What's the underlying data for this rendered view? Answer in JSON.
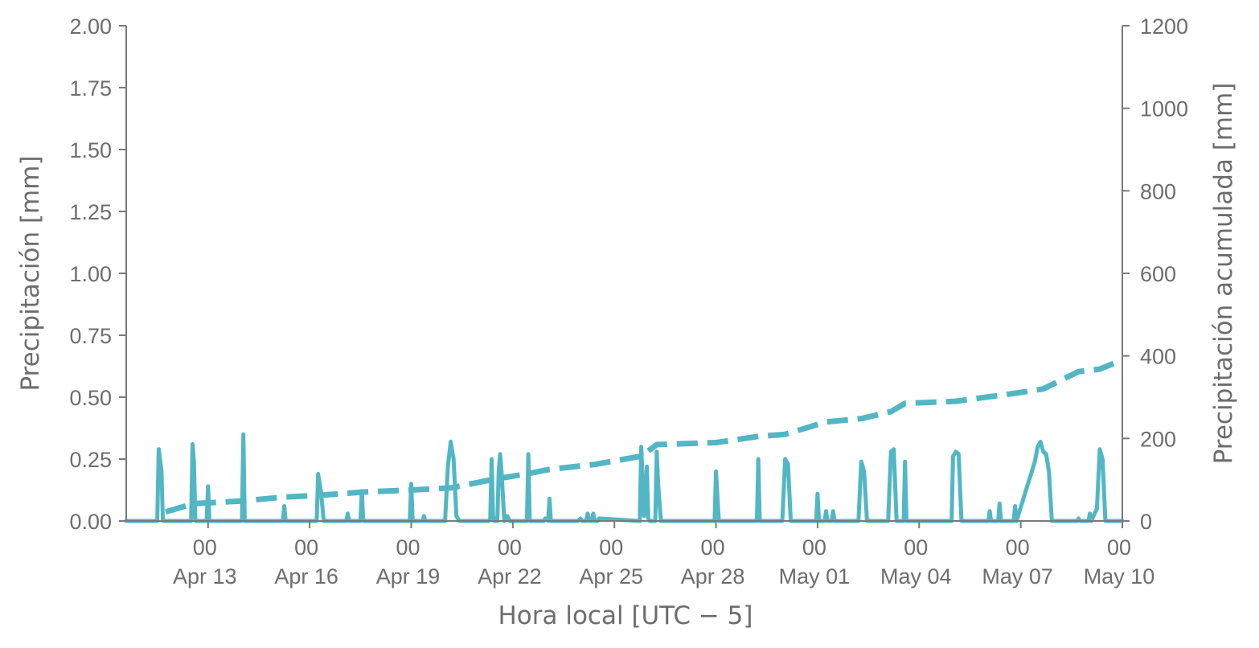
{
  "chart_data": {
    "type": "line",
    "xlabel": "Hora local [UTC − 5]",
    "ylabel_left": "Precipitación [mm]",
    "ylabel_right": "Precipitación acumulada [mm]",
    "x_range": [
      "2023-04-10T14:00",
      "2023-05-10T00:00"
    ],
    "ylim_left": [
      0,
      2.0
    ],
    "ylim_right": [
      0,
      1200
    ],
    "grid": false,
    "x_ticks": [
      {
        "hour": "00",
        "date": "Apr 13",
        "at": "2023-04-13T00:00"
      },
      {
        "hour": "00",
        "date": "Apr 16",
        "at": "2023-04-16T00:00"
      },
      {
        "hour": "00",
        "date": "Apr 19",
        "at": "2023-04-19T00:00"
      },
      {
        "hour": "00",
        "date": "Apr 22",
        "at": "2023-04-22T00:00"
      },
      {
        "hour": "00",
        "date": "Apr 25",
        "at": "2023-04-25T00:00"
      },
      {
        "hour": "00",
        "date": "Apr 28",
        "at": "2023-04-28T00:00"
      },
      {
        "hour": "00",
        "date": "May 01",
        "at": "2023-05-01T00:00"
      },
      {
        "hour": "00",
        "date": "May 04",
        "at": "2023-05-04T00:00"
      },
      {
        "hour": "00",
        "date": "May 07",
        "at": "2023-05-07T00:00"
      },
      {
        "hour": "00",
        "date": "May 10",
        "at": "2023-05-10T00:00"
      }
    ],
    "y_ticks_left": [
      "0.00",
      "0.25",
      "0.50",
      "0.75",
      "1.00",
      "1.25",
      "1.50",
      "1.75",
      "2.00"
    ],
    "y_ticks_right": [
      "0",
      "200",
      "400",
      "600",
      "800",
      "1000",
      "1200"
    ],
    "colors": {
      "series": "#52b6c4",
      "axis": "#7a7a7a",
      "text": "#6d6d6d"
    },
    "series": [
      {
        "axis": "left",
        "style": "solid",
        "x": [
          "2023-04-10T14:00",
          "2023-04-11T12:00",
          "2023-04-11T13:00",
          "2023-04-11T14:00",
          "2023-04-11T15:00",
          "2023-04-11T16:00",
          "2023-04-11T18:00",
          "2023-04-11T20:00",
          "2023-04-11T21:00",
          "2023-04-11T22:00",
          "2023-04-12T12:00",
          "2023-04-12T13:00",
          "2023-04-12T14:00",
          "2023-04-12T15:00",
          "2023-04-12T16:00",
          "2023-04-12T17:00",
          "2023-04-12T18:00",
          "2023-04-12T23:00",
          "2023-04-13T00:00",
          "2023-04-13T01:00",
          "2023-04-13T22:00",
          "2023-04-14T00:00",
          "2023-04-14T01:00",
          "2023-04-14T02:00",
          "2023-04-15T05:00",
          "2023-04-15T06:00",
          "2023-04-15T07:00",
          "2023-04-16T05:00",
          "2023-04-16T06:00",
          "2023-04-16T08:00",
          "2023-04-16T10:00",
          "2023-04-16T12:00",
          "2023-04-17T02:00",
          "2023-04-17T03:00",
          "2023-04-17T04:00",
          "2023-04-17T12:00",
          "2023-04-17T13:00",
          "2023-04-17T14:00",
          "2023-04-18T23:00",
          "2023-04-19T00:00",
          "2023-04-19T01:00",
          "2023-04-19T08:00",
          "2023-04-19T09:00",
          "2023-04-19T10:00",
          "2023-04-20T00:00",
          "2023-04-20T02:00",
          "2023-04-20T04:00",
          "2023-04-20T06:00",
          "2023-04-20T08:00",
          "2023-04-20T10:00",
          "2023-04-21T07:00",
          "2023-04-21T08:00",
          "2023-04-21T09:00",
          "2023-04-21T10:00",
          "2023-04-21T11:00",
          "2023-04-21T13:00",
          "2023-04-21T14:00",
          "2023-04-21T15:00",
          "2023-04-21T16:00",
          "2023-04-21T18:00",
          "2023-04-21T20:00",
          "2023-04-21T22:00",
          "2023-04-22T10:00",
          "2023-04-22T11:00",
          "2023-04-22T12:00",
          "2023-04-22T22:00",
          "2023-04-22T23:00",
          "2023-04-23T01:00",
          "2023-04-23T02:00",
          "2023-04-23T03:00",
          "2023-04-23T22:00",
          "2023-04-24T00:00",
          "2023-04-24T01:00",
          "2023-04-24T04:00",
          "2023-04-24T05:00",
          "2023-04-24T06:00",
          "2023-04-24T08:00",
          "2023-04-24T09:00",
          "2023-04-24T10:00",
          "2023-04-24T12:00",
          "2023-04-24T13:00",
          "2023-04-25T18:00",
          "2023-04-25T19:00",
          "2023-04-25T21:00",
          "2023-04-25T23:00",
          "2023-04-26T00:00",
          "2023-04-26T01:00",
          "2023-04-26T03:00",
          "2023-04-26T05:00",
          "2023-04-26T06:00",
          "2023-04-26T07:00",
          "2023-04-26T09:00",
          "2023-04-27T23:00",
          "2023-04-28T00:00",
          "2023-04-28T02:00",
          "2023-04-28T04:00",
          "2023-04-29T05:00",
          "2023-04-29T06:00",
          "2023-04-29T07:00",
          "2023-04-29T23:00",
          "2023-04-30T01:00",
          "2023-04-30T03:00",
          "2023-04-30T05:00",
          "2023-04-30T07:00",
          "2023-04-30T23:00",
          "2023-05-01T00:00",
          "2023-05-01T01:00",
          "2023-05-01T05:00",
          "2023-05-01T06:00",
          "2023-05-01T07:00",
          "2023-05-01T10:00",
          "2023-05-01T11:00",
          "2023-05-01T12:00",
          "2023-05-02T05:00",
          "2023-05-02T07:00",
          "2023-05-02T09:00",
          "2023-05-02T11:00",
          "2023-05-03T02:00",
          "2023-05-03T04:00",
          "2023-05-03T06:00",
          "2023-05-03T08:00",
          "2023-05-03T13:00",
          "2023-05-03T14:00",
          "2023-05-03T15:00",
          "2023-05-04T23:00",
          "2023-05-05T00:00",
          "2023-05-05T02:00",
          "2023-05-05T04:00",
          "2023-05-05T06:00",
          "2023-05-06T01:00",
          "2023-05-06T02:00",
          "2023-05-06T03:00",
          "2023-05-06T08:00",
          "2023-05-06T09:00",
          "2023-05-06T10:00",
          "2023-05-06T19:00",
          "2023-05-06T20:00",
          "2023-05-06T21:00",
          "2023-05-07T10:00",
          "2023-05-07T12:00",
          "2023-05-07T14:00",
          "2023-05-07T16:00",
          "2023-05-07T18:00",
          "2023-05-07T20:00",
          "2023-05-07T22:00",
          "2023-05-08T00:00",
          "2023-05-08T02:00",
          "2023-05-08T16:00",
          "2023-05-08T17:00",
          "2023-05-08T18:00",
          "2023-05-09T00:00",
          "2023-05-09T01:00",
          "2023-05-09T02:00",
          "2023-05-09T06:00",
          "2023-05-09T08:00",
          "2023-05-09T10:00",
          "2023-05-09T12:00",
          "2023-05-10T00:00"
        ],
        "values": [
          0,
          0,
          0.29,
          0.25,
          0.2,
          0,
          0,
          0,
          0,
          0,
          0,
          0.31,
          0.24,
          0,
          0,
          0,
          0,
          0,
          0.14,
          0,
          0,
          0,
          0.35,
          0,
          0,
          0.06,
          0,
          0,
          0.19,
          0.12,
          0,
          0,
          0,
          0.03,
          0,
          0,
          0.12,
          0,
          0,
          0.15,
          0,
          0,
          0.02,
          0,
          0,
          0.22,
          0.32,
          0.25,
          0.02,
          0,
          0,
          0.01,
          0.25,
          0.02,
          0,
          0,
          0.2,
          0.27,
          0.2,
          0,
          0.02,
          0,
          0,
          0.27,
          0,
          0,
          0.01,
          0,
          0.09,
          0,
          0,
          0.01,
          0,
          0,
          0.03,
          0,
          0,
          0.03,
          0,
          0,
          0.01,
          0,
          0.3,
          0.02,
          0.22,
          0.01,
          0,
          0,
          0,
          0.28,
          0.15,
          0,
          0,
          0.2,
          0,
          0,
          0,
          0.25,
          0,
          0,
          0.25,
          0.23,
          0,
          0,
          0,
          0.11,
          0,
          0,
          0.04,
          0,
          0,
          0.04,
          0,
          0,
          0.24,
          0.2,
          0,
          0,
          0.28,
          0.29,
          0,
          0,
          0.24,
          0,
          0,
          0.26,
          0.28,
          0.27,
          0,
          0,
          0.04,
          0,
          0,
          0.07,
          0,
          0,
          0.06,
          0,
          0.24,
          0.3,
          0.32,
          0.28,
          0.27,
          0.2,
          0,
          0,
          0,
          0,
          0.01,
          0,
          0,
          0.03,
          0,
          0.05,
          0.29,
          0.25,
          0,
          0
        ],
        "values_raw": [
          0,
          0,
          0.29,
          0.25,
          0.2,
          0,
          0,
          0,
          0,
          0,
          0,
          0.31,
          0.24,
          0,
          0,
          0,
          0,
          0,
          0.14,
          0,
          0,
          0,
          0.35,
          0,
          0,
          0.06,
          0,
          0,
          0.19,
          0.12,
          0,
          0,
          0,
          0.03,
          0,
          0,
          0.12,
          0,
          0,
          0.15,
          0,
          0,
          0.02,
          0,
          0,
          0.22,
          0.32,
          0.25,
          0.02,
          0,
          0,
          0.01,
          0.25,
          0.02,
          0,
          0,
          0.2,
          0.27,
          0.2,
          0,
          0.02,
          0,
          0,
          0.27,
          0,
          0,
          0.01,
          0,
          0.09,
          0,
          0,
          0.01,
          0,
          0,
          0.03,
          0,
          0,
          0.03,
          0,
          0,
          0.01,
          0,
          0.3,
          0.02,
          0.22,
          0.01,
          0,
          0,
          0,
          0.28,
          0.15,
          0,
          0,
          0.2,
          0,
          0,
          0,
          0.25,
          0,
          0,
          0.25,
          0.23,
          0,
          0,
          0,
          0.11,
          0,
          0,
          0.04,
          0,
          0,
          0.04,
          0,
          0,
          0.24,
          0.2,
          0,
          0,
          0.28,
          0.29,
          0,
          0,
          0.24,
          0,
          0,
          0.26,
          0.28,
          0.27,
          0,
          0,
          0.04,
          0,
          0,
          0.07,
          0,
          0,
          0.06,
          0,
          0.24,
          0.3,
          0.32,
          0.28,
          0.27,
          0.2,
          0,
          0,
          0,
          0,
          0.01,
          0,
          0,
          0.03,
          0,
          0.05,
          0.29,
          0.25,
          0,
          0
        ]
      },
      {
        "axis": "right",
        "style": "dashed",
        "x": [
          "2023-04-11T18:00",
          "2023-04-12T14:00",
          "2023-04-13T22:00",
          "2023-04-15T06:00",
          "2023-04-16T06:00",
          "2023-04-17T13:00",
          "2023-04-19T00:00",
          "2023-04-20T04:00",
          "2023-04-21T09:00",
          "2023-04-22T11:00",
          "2023-04-23T02:00",
          "2023-04-24T10:00",
          "2023-04-25T19:00",
          "2023-04-26T06:00",
          "2023-04-28T00:00",
          "2023-04-29T06:00",
          "2023-04-30T01:00",
          "2023-05-01T06:00",
          "2023-05-02T07:00",
          "2023-05-03T04:00",
          "2023-05-03T14:00",
          "2023-05-05T02:00",
          "2023-05-06T21:00",
          "2023-05-07T16:00",
          "2023-05-08T17:00",
          "2023-05-09T08:00",
          "2023-05-10T00:00"
        ],
        "values": [
          22,
          42,
          48,
          58,
          62,
          70,
          75,
          80,
          100,
          115,
          125,
          137,
          157,
          185,
          190,
          205,
          210,
          240,
          248,
          265,
          285,
          290,
          310,
          320,
          362,
          368,
          390
        ]
      }
    ]
  }
}
